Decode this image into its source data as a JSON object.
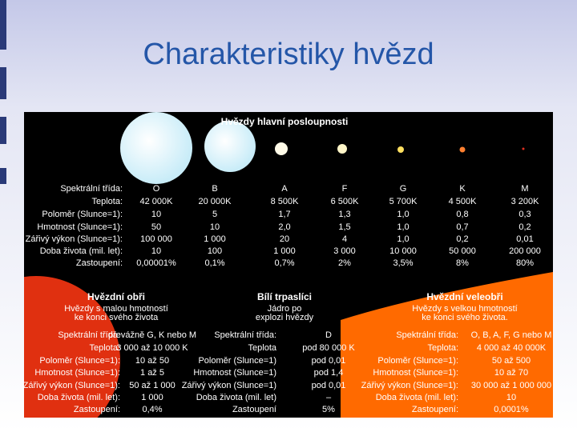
{
  "title": "Charakteristiky hvězd",
  "main_sequence": {
    "heading": "Hvězdy hlavní posloupnosti",
    "row_labels": [
      "Spektrální třída:",
      "Teplota:",
      "Poloměr (Slunce=1):",
      "Hmotnost (Slunce=1):",
      "Zářivý výkon (Slunce=1):",
      "Doba života (mil. let):",
      "Zastoupení:"
    ],
    "classes": [
      "O",
      "B",
      "A",
      "F",
      "G",
      "K",
      "M"
    ],
    "rows": [
      [
        "42 000K",
        "20 000K",
        "8 500K",
        "6 500K",
        "5 700K",
        "4 500K",
        "3 200K"
      ],
      [
        "10",
        "5",
        "1,7",
        "1,3",
        "1,0",
        "0,8",
        "0,3"
      ],
      [
        "50",
        "10",
        "2,0",
        "1,5",
        "1,0",
        "0,7",
        "0,2"
      ],
      [
        "100 000",
        "1 000",
        "20",
        "4",
        "1,0",
        "0,2",
        "0,01"
      ],
      [
        "10",
        "100",
        "1 000",
        "3 000",
        "10 000",
        "50 000",
        "200 000"
      ],
      [
        "0,00001%",
        "0,1%",
        "0,7%",
        "2%",
        "3,5%",
        "8%",
        "80%"
      ]
    ]
  },
  "groups": [
    {
      "heading": "Hvězdní obři",
      "description": [
        "Hvězdy s malou hmotností",
        "ke konci svého života"
      ],
      "labels": [
        "Spektrální třída:",
        "Teplota:",
        "Poloměr (Slunce=1):",
        "Hmotnost (Slunce=1):",
        "Zářivý výkon (Slunce=1):",
        "Doba života (mil. let):",
        "Zastoupení:"
      ],
      "values": [
        "převážně G, K nebo M",
        "3 000 až 10 000 K",
        "10 až 50",
        "1 až 5",
        "50 až 1 000",
        "1 000",
        "0,4%"
      ]
    },
    {
      "heading": "Bílí trpaslíci",
      "description": [
        "Jádro po",
        "explozi hvězdy"
      ],
      "labels": [
        "Spektrální třída:",
        "Teplota",
        "Poloměr (Slunce=1)",
        "Hmotnost (Slunce=1)",
        "Zářivý výkon (Slunce=1)",
        "Doba života (mil. let)",
        "Zastoupení"
      ],
      "values": [
        "D",
        "pod 80 000 K",
        "pod 0,01",
        "pod 1,4",
        "pod 0,01",
        "–",
        "5%"
      ]
    },
    {
      "heading": "Hvězdní veleobři",
      "description": [
        "Hvězdy s velkou hmotností",
        "ke konci svého života."
      ],
      "labels": [
        "Spektrální třída:",
        "Teplota:",
        "Poloměr (Slunce=1):",
        "Hmotnost (Slunce=1):",
        "Zářivý výkon (Slunce=1):",
        "Doba života (mil. let):",
        "Zastoupení:"
      ],
      "values": [
        "O, B, A, F, G nebo M",
        "4 000 až 40 000K",
        "50 až 500",
        "10 až 70",
        "30 000 až 1 000 000",
        "10",
        "0,0001%"
      ]
    }
  ]
}
